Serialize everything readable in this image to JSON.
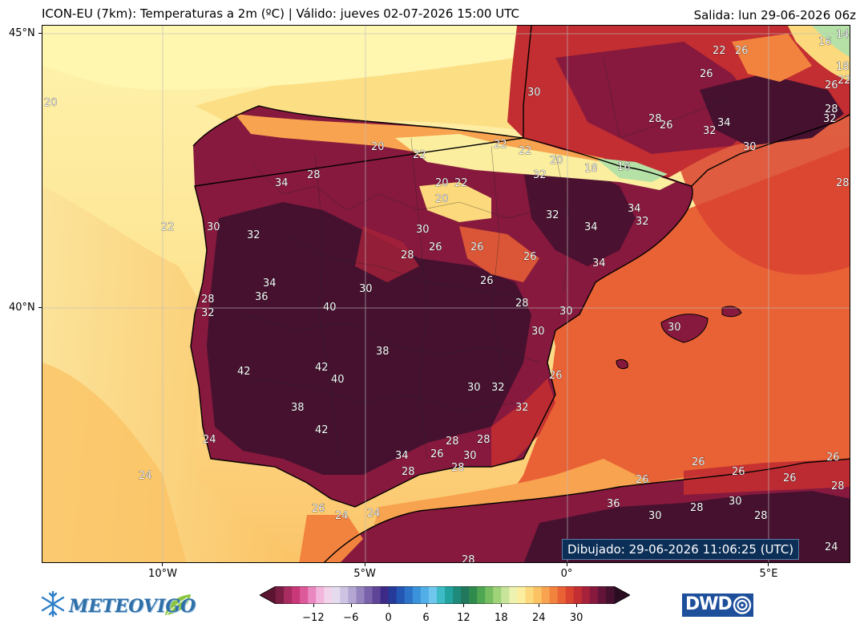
{
  "header": {
    "title": "ICON-EU (7km): Temperaturas a 2m (ºC) | Válido: jueves 02-07-2026 15:00 UTC",
    "run": "Salida: lun 29-06-2026 06z"
  },
  "axes": {
    "lat_ticks": [
      "45°N",
      "40°N"
    ],
    "lon_ticks": [
      "10°W",
      "5°W",
      "0°",
      "5°E"
    ]
  },
  "drawn_stamp": "Dibujado: 29-06-2026 11:06:25 (UTC)",
  "colorbar": {
    "ticks": [
      "−12",
      "−6",
      "0",
      "6",
      "12",
      "18",
      "24",
      "30"
    ],
    "colors": [
      "#7a1e44",
      "#a82c5f",
      "#c9397a",
      "#dc5a9a",
      "#e987c0",
      "#f2b6dd",
      "#f1d3ea",
      "#e4dcee",
      "#cdc3e2",
      "#b4a6d2",
      "#9684bf",
      "#7a63ab",
      "#5f4597",
      "#3d2a86",
      "#263a9a",
      "#2456b3",
      "#2d73c8",
      "#3a92da",
      "#52aee6",
      "#6fc7ee",
      "#3dbcc6",
      "#23a3a0",
      "#1e8b7a",
      "#22785d",
      "#2f8a4e",
      "#4ea552",
      "#76bd62",
      "#a0d27a",
      "#c8e49a",
      "#eef2b0",
      "#fbee9f",
      "#fbd97c",
      "#fbc263",
      "#f8a34f",
      "#f2833f",
      "#e96235",
      "#d94330",
      "#c22e31",
      "#a6223a",
      "#86193d",
      "#631438",
      "#45112f"
    ],
    "extend_low": "#5c1530",
    "extend_high": "#2b0d22"
  },
  "logos": {
    "meteovigo": "METEOVIGO",
    "dwd": "DWD"
  },
  "map_colors": {
    "sea_cool": "#fff6b0",
    "sea_warm": "#fbc263",
    "sea_hot": "#f2833f",
    "sea_mediterranean": "#e96235",
    "land_hot": "#c22e31",
    "land_very_hot": "#86193d",
    "land_extreme": "#45112f",
    "mountain_cool": "#b5e1a6",
    "coast": "#000000"
  },
  "contour_labels": [
    "20",
    "22",
    "24",
    "26",
    "28",
    "30",
    "32",
    "34",
    "36",
    "38",
    "40",
    "42",
    "18",
    "16",
    "14"
  ]
}
